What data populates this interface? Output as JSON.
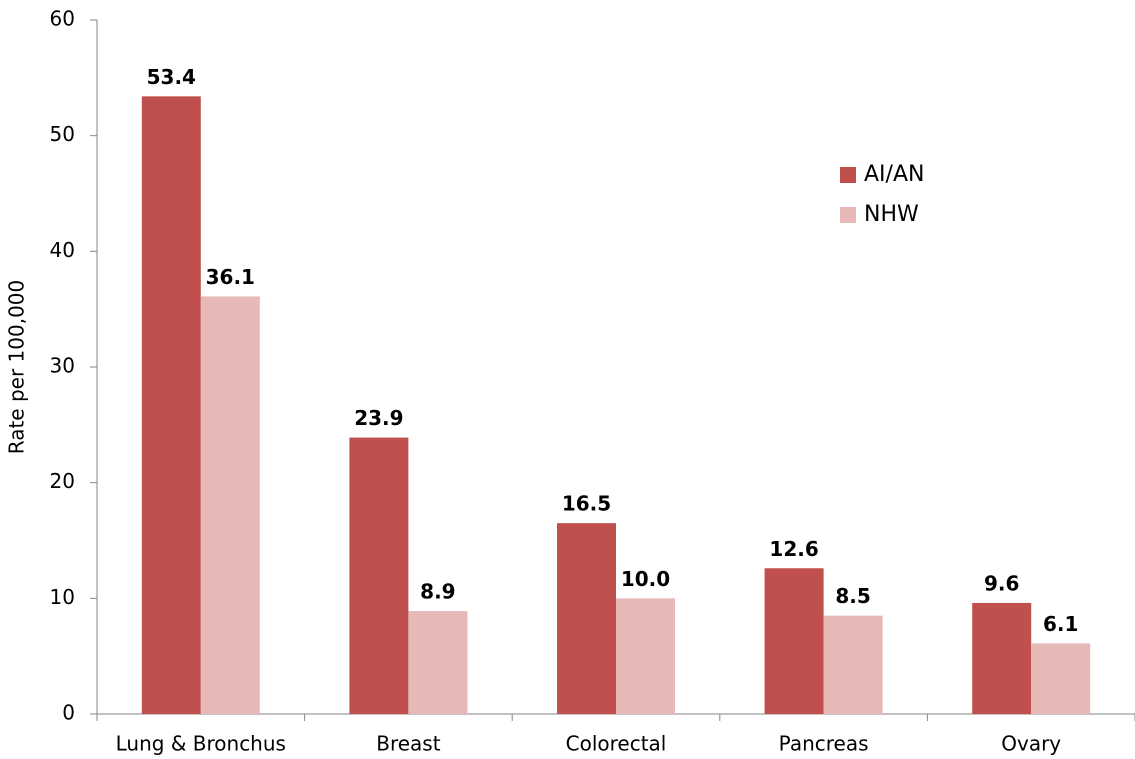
{
  "chart_data": {
    "type": "bar",
    "y_label": "Rate per 100,000",
    "categories": [
      "Lung & Bronchus",
      "Breast",
      "Colorectal",
      "Pancreas",
      "Ovary"
    ],
    "series": [
      {
        "name": "AI/AN",
        "color": "#c0504d",
        "values": [
          53.4,
          23.9,
          16.5,
          12.6,
          9.6
        ],
        "value_labels": [
          "53.4",
          "23.9",
          "16.5",
          "12.6",
          "9.6"
        ]
      },
      {
        "name": "NHW",
        "color": "#e6b9b8",
        "values": [
          36.1,
          8.9,
          10.0,
          8.5,
          6.1
        ],
        "value_labels": [
          "36.1",
          "8.9",
          "10.0",
          "8.5",
          "6.1"
        ]
      }
    ],
    "ylim": [
      0,
      60
    ],
    "yticks": [
      0,
      10,
      20,
      30,
      40,
      50,
      60
    ],
    "grid": false,
    "legend": "upper right"
  }
}
